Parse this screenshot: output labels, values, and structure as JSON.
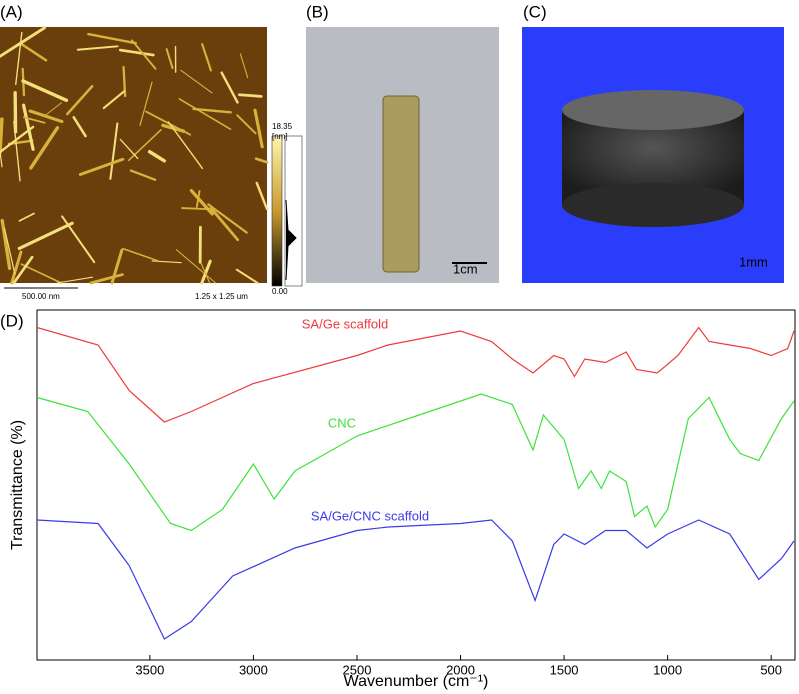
{
  "panels": {
    "a": {
      "label": "(A)",
      "scale_max": "18.35",
      "scale_unit": "[nm]",
      "scale_min": "0.00",
      "scale_bar": "500.00 nm",
      "size": "1.25 x 1.25 um"
    },
    "b": {
      "label": "(B)",
      "scale_bar": "1cm"
    },
    "c": {
      "label": "(C)",
      "scale_bar": "1mm"
    }
  },
  "chart_data": {
    "type": "line",
    "label": "(D)",
    "x_label": "Wavenumber (cm⁻¹)",
    "y_label": "Transmittance (%)",
    "xlim": [
      4045,
      385
    ],
    "ylim": [
      0,
      100
    ],
    "xticks": [
      3500,
      3000,
      2500,
      2000,
      1500,
      1000,
      500
    ],
    "series": [
      {
        "name": "SA/Ge scaffold",
        "color": "#ee3b3b",
        "x": [
          4045,
          3750,
          3600,
          3430,
          3300,
          3000,
          2500,
          2350,
          2000,
          1850,
          1750,
          1650,
          1550,
          1500,
          1450,
          1400,
          1300,
          1200,
          1150,
          1050,
          950,
          850,
          800,
          700,
          600,
          500,
          420,
          390
        ],
        "values": [
          95,
          90,
          77,
          68,
          71,
          79,
          87,
          90,
          94,
          91,
          86,
          82,
          87,
          86,
          81,
          86,
          85,
          88,
          83,
          82,
          87,
          95,
          91,
          90,
          89,
          87,
          89,
          94
        ]
      },
      {
        "name": "CNC",
        "color": "#3de23d",
        "x": [
          4045,
          3800,
          3600,
          3400,
          3300,
          3150,
          3000,
          2900,
          2800,
          2500,
          2200,
          1900,
          1750,
          1650,
          1600,
          1500,
          1430,
          1370,
          1320,
          1280,
          1200,
          1160,
          1100,
          1060,
          1000,
          900,
          800,
          700,
          650,
          560,
          450,
          390
        ],
        "values": [
          75,
          71,
          56,
          39,
          37,
          43,
          56,
          46,
          54,
          64,
          70,
          76,
          73,
          60,
          70,
          63,
          49,
          54,
          49,
          54,
          51,
          41,
          44,
          38,
          43,
          69,
          75,
          63,
          59,
          57,
          69,
          74
        ]
      },
      {
        "name": "SA/Ge/CNC scaffold",
        "color": "#3b3be8",
        "x": [
          4045,
          3750,
          3600,
          3430,
          3300,
          3100,
          2800,
          2500,
          2350,
          2000,
          1850,
          1750,
          1640,
          1550,
          1500,
          1400,
          1300,
          1200,
          1100,
          1000,
          850,
          700,
          560,
          450,
          390
        ],
        "values": [
          40,
          39,
          27,
          6,
          11,
          24,
          32,
          37,
          38,
          39,
          40,
          34,
          17,
          33,
          36,
          33,
          37,
          37,
          32,
          36,
          40,
          36,
          23,
          29,
          34
        ]
      }
    ]
  }
}
